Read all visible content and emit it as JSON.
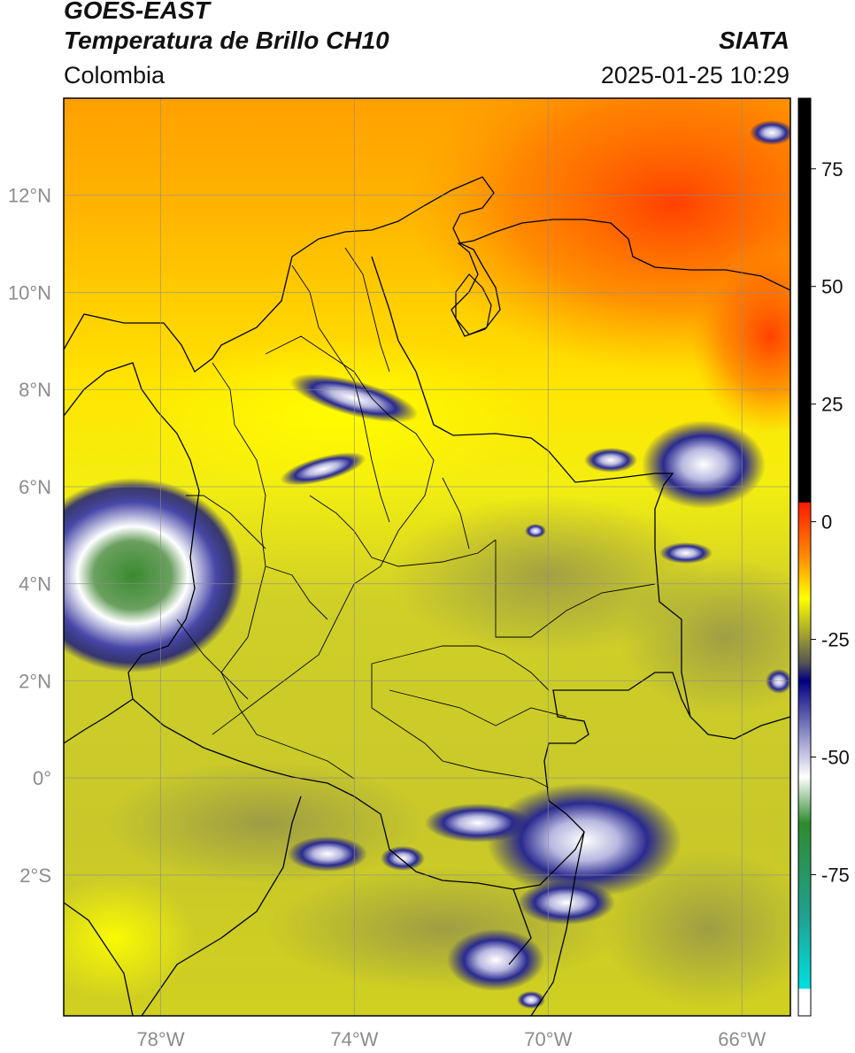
{
  "header": {
    "satellite": "GOES-EAST",
    "product": "Temperatura de Brillo CH10",
    "region": "Colombia",
    "organization": "SIATA",
    "timestamp": "2025-01-25 10:29"
  },
  "map": {
    "lon_range": [
      -80,
      -65
    ],
    "lat_range": [
      -4.9,
      14
    ],
    "lon_ticks": [
      {
        "value": -78,
        "label": "78°W"
      },
      {
        "value": -74,
        "label": "74°W"
      },
      {
        "value": -70,
        "label": "70°W"
      },
      {
        "value": -66,
        "label": "66°W"
      }
    ],
    "lat_ticks": [
      {
        "value": 12,
        "label": "12°N"
      },
      {
        "value": 10,
        "label": "10°N"
      },
      {
        "value": 8,
        "label": "8°N"
      },
      {
        "value": 6,
        "label": "6°N"
      },
      {
        "value": 4,
        "label": "4°N"
      },
      {
        "value": 2,
        "label": "2°N"
      },
      {
        "value": 0,
        "label": "0°"
      },
      {
        "value": -2,
        "label": "2°S"
      }
    ],
    "grid": true
  },
  "colorbar": {
    "range": [
      -105,
      90
    ],
    "ticks": [
      {
        "value": 75,
        "label": "75"
      },
      {
        "value": 50,
        "label": "50"
      },
      {
        "value": 25,
        "label": "25"
      },
      {
        "value": 0,
        "label": "0"
      },
      {
        "value": -25,
        "label": "-25"
      },
      {
        "value": -50,
        "label": "-50"
      },
      {
        "value": -75,
        "label": "-75"
      }
    ],
    "colors": {
      "black": "#000000",
      "red": "#ff1a00",
      "orange": "#ff9900",
      "yellow": "#ffff00",
      "olive": "#8a8a30",
      "dark_gray": "#555555",
      "navy": "#000080",
      "white": "#ffffff",
      "green": "#2e8b2e",
      "teal": "#00d0d0"
    }
  }
}
